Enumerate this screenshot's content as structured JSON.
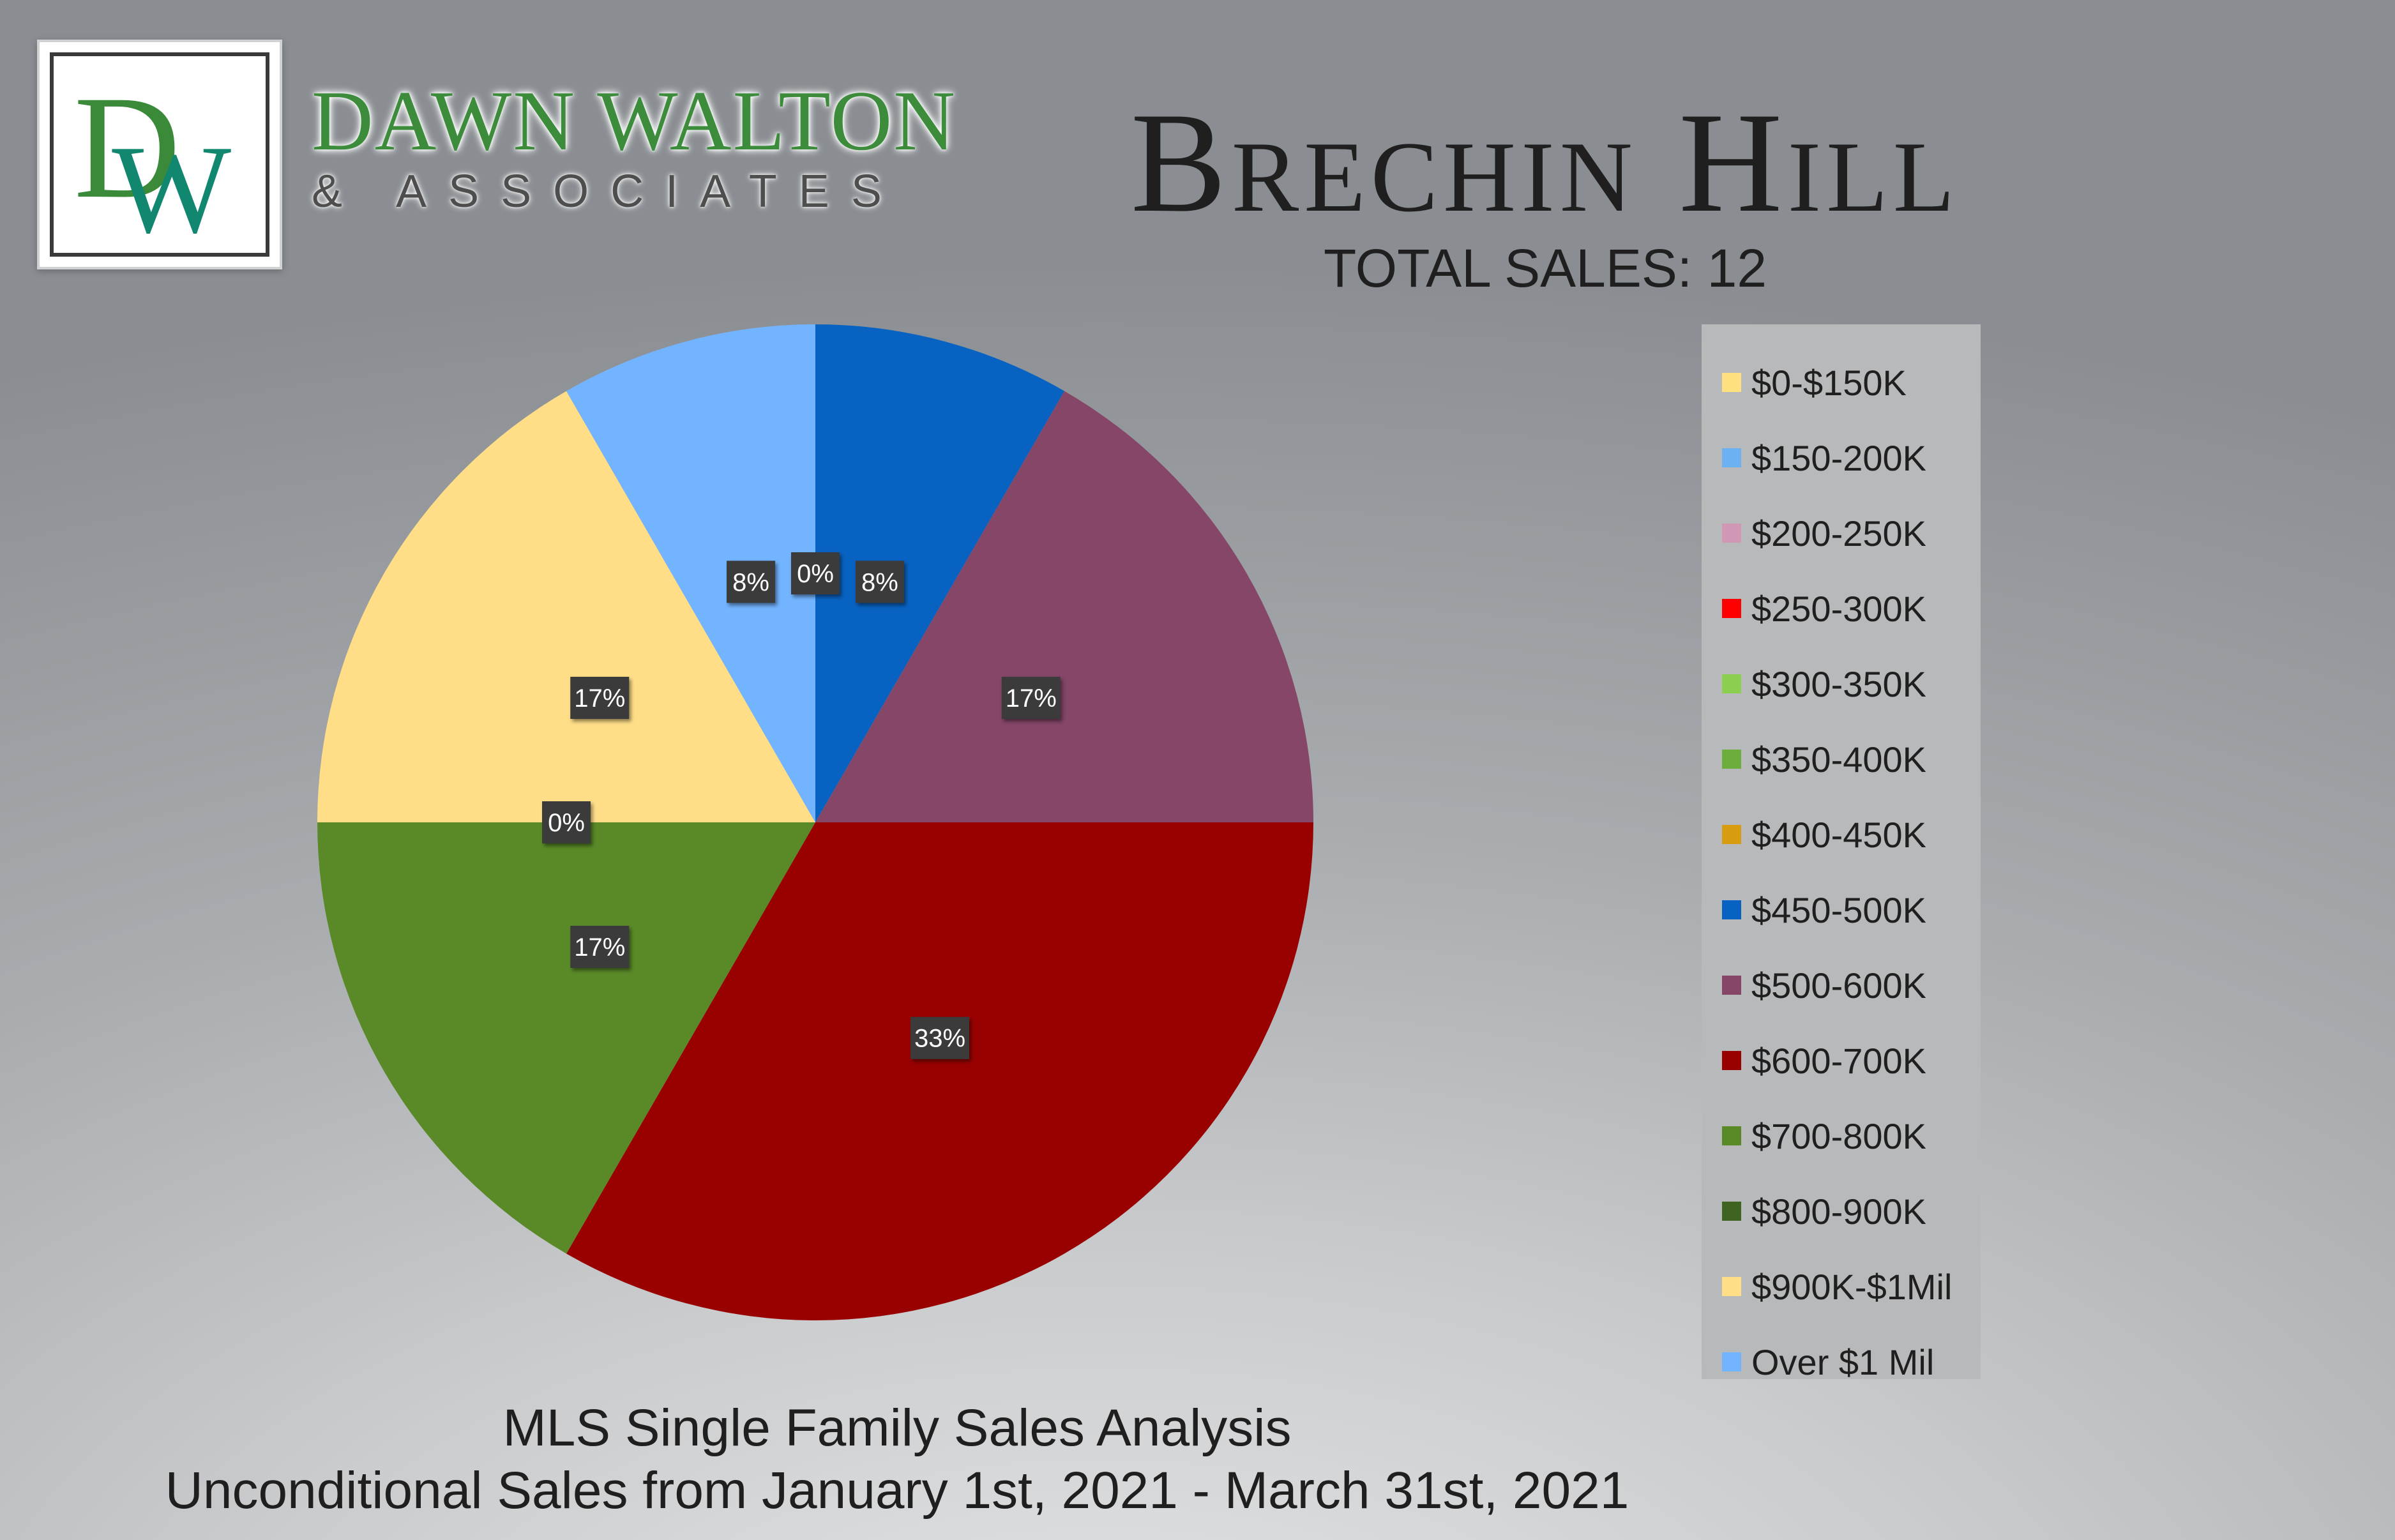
{
  "logo": {
    "monogram": "DW",
    "name": "DAWN WALTON",
    "subtitle": "& ASSOCIATES"
  },
  "header": {
    "title": "Brechin Hill",
    "total_sales": "TOTAL SALES: 12"
  },
  "footer": {
    "line1": "MLS Single Family Sales Analysis",
    "line2": "Unconditional Sales from January 1st, 2021 - March 31st, 2021"
  },
  "chart_data": {
    "type": "pie",
    "categories": [
      "$0-$150K",
      "$150-200K",
      "$200-250K",
      "$250-300K",
      "$300-350K",
      "$350-400K",
      "$400-450K",
      "$450-500K",
      "$500-600K",
      "$600-700K",
      "$700-800K",
      "$800-900K",
      "$900K-$1Mil",
      "Over $1 Mil"
    ],
    "values": [
      0,
      0,
      0,
      0,
      0,
      0,
      0,
      1,
      2,
      4,
      2,
      0,
      2,
      1
    ],
    "data_labels": [
      "0%",
      "",
      "",
      "",
      "",
      "",
      "",
      "8%",
      "17%",
      "33%",
      "17%",
      "0%",
      "17%",
      "8%"
    ],
    "colors": [
      "#ffe080",
      "#6cb2f2",
      "#d098b4",
      "#ff0000",
      "#8ccf50",
      "#6cae3c",
      "#d89c10",
      "#0862c1",
      "#854667",
      "#990101",
      "#598a27",
      "#3f6320",
      "#ffde87",
      "#72b4ff"
    ],
    "legend_position": "right"
  }
}
